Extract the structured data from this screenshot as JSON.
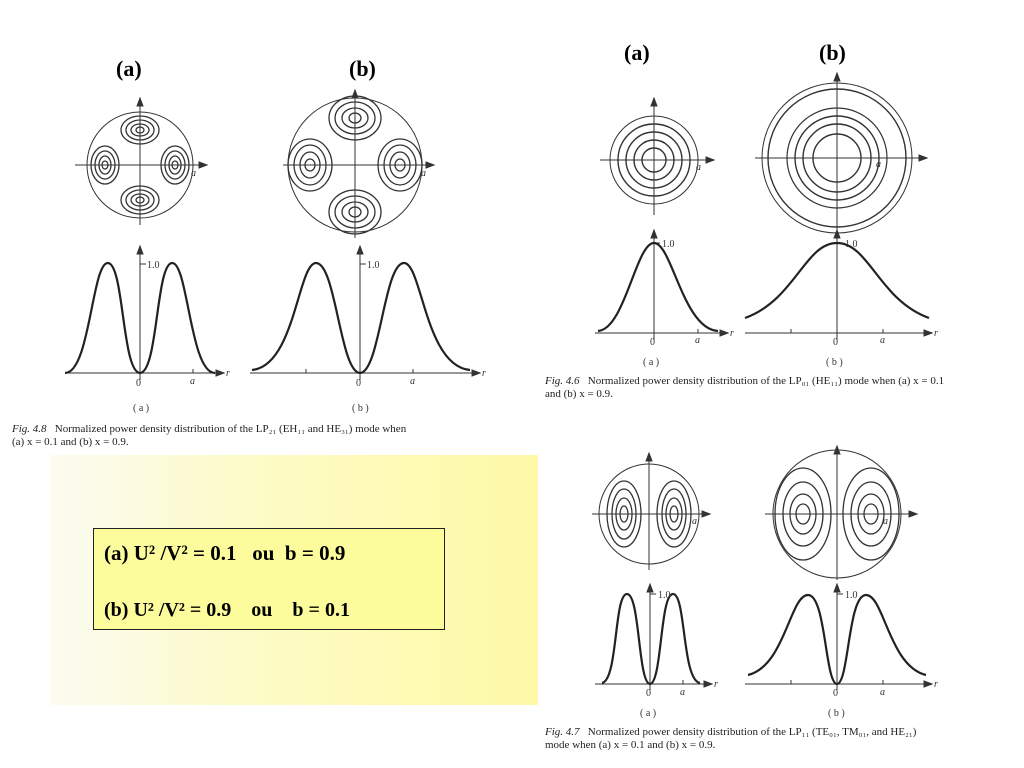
{
  "figures": {
    "fig48": {
      "label_a": "(a)",
      "label_b": "(b)",
      "peak_label": "1.0",
      "zero": "0",
      "axis_a": "a",
      "axis_r": "r",
      "sub_a": "( a )",
      "sub_b": "( b )",
      "caption_num": "Fig. 4.8",
      "caption_line1": "Normalized power density distribution of the LP₂₁ (EH₁₁ and HE₃₁) mode when",
      "caption_line2": "(a) x = 0.1 and (b) x = 0.9."
    },
    "fig46": {
      "label_a": "(a)",
      "label_b": "(b)",
      "peak_label": "1.0",
      "zero": "0",
      "axis_a": "a",
      "axis_r": "r",
      "sub_a": "( a )",
      "sub_b": "( b )",
      "caption_num": "Fig. 4.6",
      "caption_line1": "Normalized power density distribution of the LP₀₁ (HE₁₁) mode when (a) x = 0.1",
      "caption_line2": "and (b) x = 0.9."
    },
    "fig47": {
      "peak_label": "1.0",
      "zero": "0",
      "axis_a": "a",
      "axis_r": "r",
      "sub_a": "( a )",
      "sub_b": "( b )",
      "caption_num": "Fig. 4.7",
      "caption_line1": "Normalized power density distribution of the LP₁₁ (TE₀₁, TM₀₁, and HE₂₁)",
      "caption_line2": "mode when (a) x = 0.1 and (b) x = 0.9."
    }
  },
  "equations": {
    "line1": {
      "tag": "(a)",
      "lhs": "U² /V² = 0.1",
      "conj": "ou",
      "rhs": "b = 0.9"
    },
    "line2": {
      "tag": "(b)",
      "lhs": "U² /V² = 0.9",
      "conj": "ou",
      "rhs": "b = 0.1"
    }
  }
}
